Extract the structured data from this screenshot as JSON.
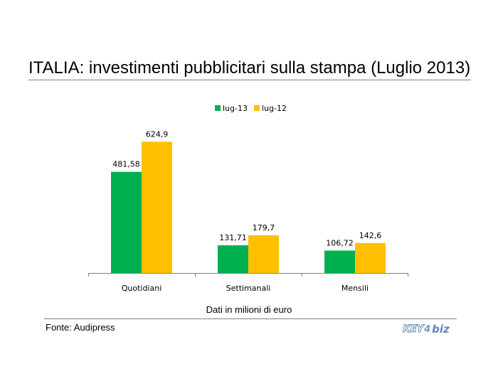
{
  "header": {
    "title": "ITALIA: investimenti pubblicitari sulla stampa (Luglio 2013)"
  },
  "footer": {
    "source": "Fonte: Audipress",
    "logo": {
      "part1": "KEY",
      "part2": "4",
      "part3": "biz"
    }
  },
  "chart_data": {
    "type": "bar",
    "title": "",
    "xlabel": "Dati in milioni di euro",
    "ylabel": "",
    "categories": [
      "Quotidiani",
      "Settimanali",
      "Mensili"
    ],
    "series": [
      {
        "name": "lug-13",
        "color": "#00b050",
        "values": [
          481.58,
          131.71,
          106.72
        ],
        "labels": [
          "481,58",
          "131,71",
          "106,72"
        ]
      },
      {
        "name": "lug-12",
        "color": "#ffc000",
        "values": [
          624.9,
          179.7,
          142.6
        ],
        "labels": [
          "624,9",
          "179,7",
          "142,6"
        ]
      }
    ],
    "ylim": [
      0,
      650
    ],
    "grid": false,
    "legend": "top-center"
  }
}
